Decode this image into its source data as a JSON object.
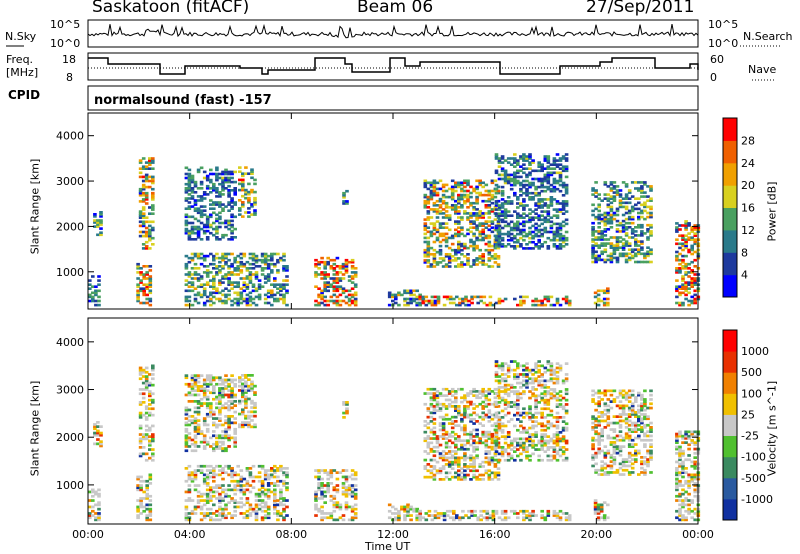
{
  "header": {
    "station": "Saskatoon (fitACF)",
    "beam": "Beam 06",
    "date": "27/Sep/2011"
  },
  "top_panels": {
    "nsky_label": "N.Sky",
    "nsky_ticks": [
      "10^5",
      "10^0"
    ],
    "nsearch_label": "N.Search",
    "nsearch_ticks": [
      "10^5",
      "10^0"
    ],
    "freq_label_1": "Freq.",
    "freq_label_2": "[MHz]",
    "freq_ticks": [
      "18",
      "8"
    ],
    "nave_label": "Nave",
    "nave_ticks": [
      "60",
      "0"
    ],
    "cpid_label": "CPID",
    "cpid_text": "normalsound (fast) -157"
  },
  "chart_data": [
    {
      "type": "heatmap",
      "title": "",
      "ylabel": "Slant Range [km]",
      "xlabel": "",
      "ylim": [
        180,
        4500
      ],
      "yticks": [
        "1000",
        "2000",
        "3000",
        "4000"
      ],
      "colorbar_label": "Power [dB]",
      "colorbar_ticks": [
        "28",
        "24",
        "20",
        "16",
        "12",
        "8",
        "4"
      ],
      "colors": [
        "#0000ff",
        "#1e3a9e",
        "#2a7a8a",
        "#4aa060",
        "#d8d020",
        "#f0a000",
        "#f06000",
        "#ff0000"
      ]
    },
    {
      "type": "heatmap",
      "title": "",
      "ylabel": "Slant Range [km]",
      "xlabel": "Time UT",
      "ylim": [
        180,
        4500
      ],
      "yticks": [
        "1000",
        "2000",
        "3000",
        "4000"
      ],
      "xticks": [
        "00:00",
        "04:00",
        "08:00",
        "12:00",
        "16:00",
        "20:00",
        "00:00"
      ],
      "colorbar_label": "Velocity [m s^-1]",
      "colorbar_ticks": [
        "1000",
        "500",
        "100",
        "25",
        "-25",
        "-100",
        "-500",
        "-1000"
      ],
      "colors": [
        "#1030a0",
        "#2a5aa0",
        "#3a8a60",
        "#50c030",
        "#c8c8c8",
        "#f0c000",
        "#f08000",
        "#e83000",
        "#ff0000"
      ]
    }
  ]
}
